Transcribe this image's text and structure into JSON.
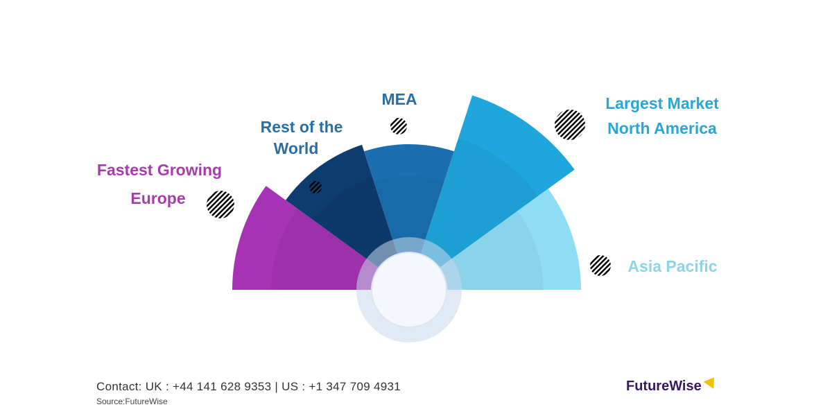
{
  "chart_data": {
    "type": "polar-area",
    "title": "",
    "note": "relative sector sizes, no axis printed",
    "segments": [
      {
        "name": "Europe",
        "label_lines": [
          "Fastest Growing",
          "Europe"
        ],
        "value": 255,
        "color": "#a632b4"
      },
      {
        "name": "Rest of the World",
        "label_lines": [
          "Rest of the",
          "World"
        ],
        "value": 220,
        "color": "#0d3c6e"
      },
      {
        "name": "MEA",
        "label_lines": [
          "MEA"
        ],
        "value": 210,
        "color": "#1b6fb0"
      },
      {
        "name": "North America",
        "label_lines": [
          "Largest Market",
          "North America"
        ],
        "value": 295,
        "color": "#1fa6dd"
      },
      {
        "name": "Asia Pacific",
        "label_lines": [
          "Asia Pacific"
        ],
        "value": 248,
        "color": "#8fdcf5"
      }
    ],
    "label_colors": {
      "Europe": "#a83ab0",
      "Rest of the World": "#2a6ea6",
      "MEA": "#2a6ea6",
      "North America": "#29a5d8",
      "Asia Pacific": "#8fd3e6"
    }
  },
  "footer": {
    "contact": "Contact:  UK : +44 141 628 9353  |  US :  +1 347 709 4931",
    "source": "Source:FutureWise",
    "logo": "FutureWise"
  }
}
